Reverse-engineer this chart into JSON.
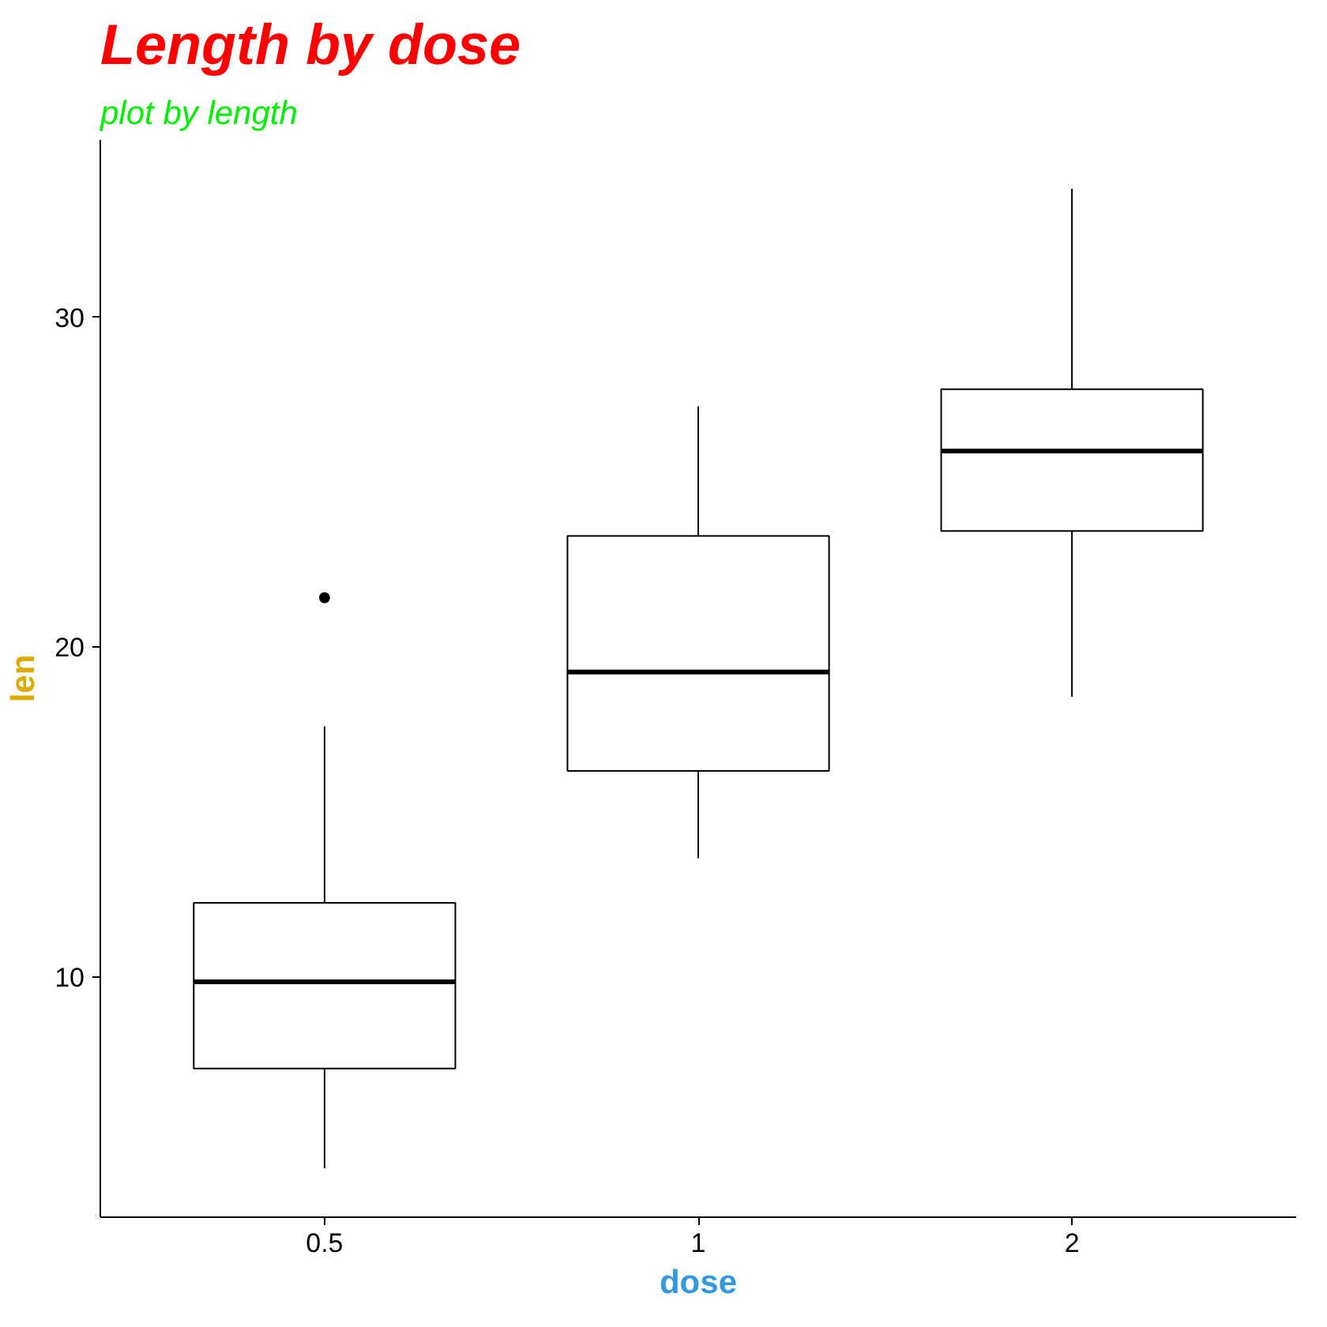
{
  "chart_data": {
    "type": "box",
    "title": "Length by dose",
    "subtitle": "plot by length",
    "xlabel": "dose",
    "ylabel": "len",
    "categories": [
      "0.5",
      "1",
      "2"
    ],
    "boxes": [
      {
        "low": 4.2,
        "q1": 7.225,
        "median": 9.85,
        "q3": 12.25,
        "high": 17.6,
        "outliers": [
          21.5
        ]
      },
      {
        "low": 13.6,
        "q1": 16.25,
        "median": 19.25,
        "q3": 23.375,
        "high": 27.3
      },
      {
        "low": 18.5,
        "q1": 23.525,
        "median": 25.95,
        "q3": 27.825,
        "high": 33.9
      }
    ],
    "ylim": [
      2.715,
      35.385
    ],
    "yticks": [
      10,
      20,
      30
    ],
    "grid": false
  }
}
